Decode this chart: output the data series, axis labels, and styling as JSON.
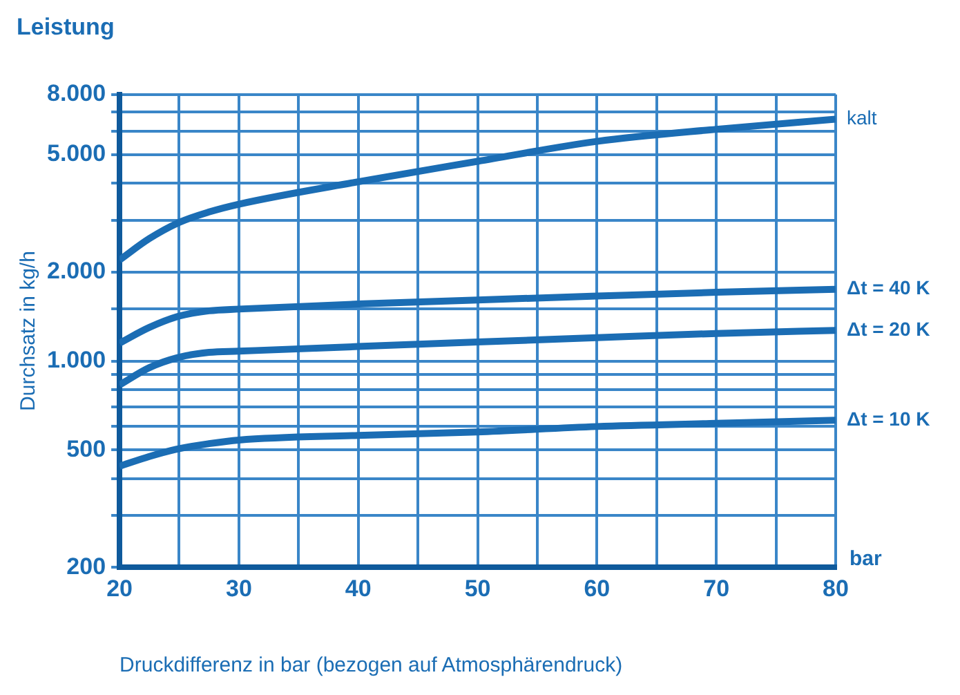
{
  "chart_data": {
    "type": "line",
    "title": "Leistung",
    "xlabel": "Druckdifferenz in bar (bezogen auf Atmosphärendruck)",
    "ylabel": "Durchsatz in kg/h",
    "annotations": [
      "bar"
    ],
    "log": "y",
    "grid": true,
    "legend": false,
    "marker": "none",
    "line_style": "solid",
    "xlim": [
      20,
      80
    ],
    "xticks": [
      20,
      {
        "value": 25,
        "label": null
      },
      30,
      {
        "value": 35,
        "label": null
      },
      40,
      {
        "value": 45,
        "label": null
      },
      50,
      {
        "value": 55,
        "label": null
      },
      60,
      {
        "value": 65,
        "label": null
      },
      70,
      {
        "value": 75,
        "label": null
      },
      80
    ],
    "ylim": [
      200,
      8000
    ],
    "yticks": [
      200,
      {
        "value": 300,
        "label": null
      },
      {
        "value": 400,
        "label": null
      },
      500,
      {
        "value": 600,
        "label": null
      },
      {
        "value": 700,
        "label": null
      },
      {
        "value": 800,
        "label": null
      },
      {
        "value": 900,
        "label": null
      },
      {
        "value": 1000,
        "label": "1.000"
      },
      {
        "value": 1500,
        "label": null
      },
      {
        "value": 2000,
        "label": "2.000"
      },
      {
        "value": 3000,
        "label": null
      },
      {
        "value": 4000,
        "label": null
      },
      {
        "value": 5000,
        "label": "5.000"
      },
      {
        "value": 6000,
        "label": null
      },
      {
        "value": 7000,
        "label": null
      },
      {
        "value": 8000,
        "label": "8.000"
      }
    ],
    "x": [
      20,
      22.5,
      25,
      27.5,
      30,
      40,
      50,
      60,
      70,
      80
    ],
    "series": [
      {
        "name": "kalt",
        "color": "#1b6db4",
        "values": [
          2200,
          2600,
          2950,
          3200,
          3400,
          4050,
          4750,
          5550,
          6100,
          6600
        ]
      },
      {
        "name": "Δt = 40 K",
        "color": "#1b6db4",
        "values": [
          1150,
          1300,
          1420,
          1480,
          1500,
          1560,
          1610,
          1660,
          1710,
          1750
        ]
      },
      {
        "name": "Δt = 20 K",
        "color": "#1b6db4",
        "values": [
          830,
          950,
          1030,
          1070,
          1080,
          1120,
          1160,
          1200,
          1240,
          1270
        ]
      },
      {
        "name": "Δt = 10 K",
        "color": "#1b6db4",
        "values": [
          440,
          475,
          505,
          525,
          540,
          560,
          575,
          600,
          615,
          630
        ]
      }
    ]
  }
}
